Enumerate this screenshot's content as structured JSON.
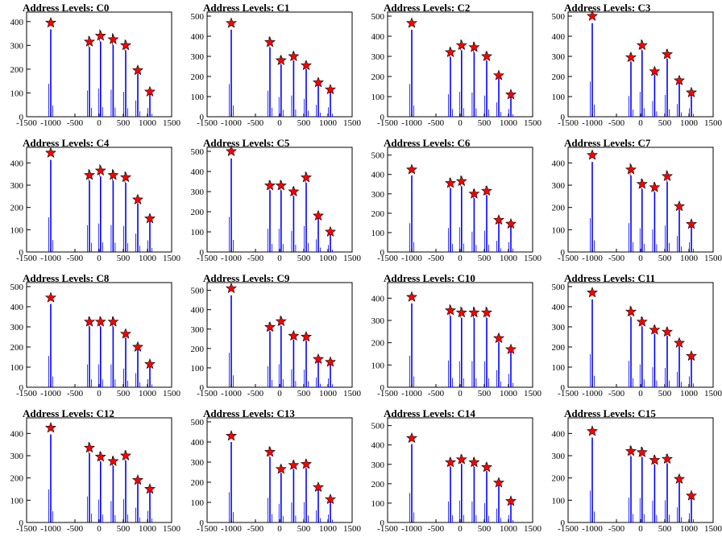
{
  "colors": {
    "histogram": "#0000ff",
    "marker": "#ff0000",
    "marker_outline": "#000000",
    "axes": "#000000"
  },
  "chart_data": [
    {
      "title": "Address Levels: C0",
      "type": "bar",
      "xlim": [
        -1500,
        1500
      ],
      "ylim": [
        0,
        440
      ],
      "xticks": [
        "-1500",
        "-1000",
        "-500",
        "0",
        "500",
        "1000",
        "1500"
      ],
      "yticks": [
        "0",
        "100",
        "200",
        "300",
        "400"
      ],
      "peaks": [
        {
          "x": -1000,
          "y": 395
        },
        {
          "x": -200,
          "y": 315
        },
        {
          "x": 30,
          "y": 340
        },
        {
          "x": 290,
          "y": 325
        },
        {
          "x": 550,
          "y": 300
        },
        {
          "x": 800,
          "y": 195
        },
        {
          "x": 1050,
          "y": 105
        }
      ]
    },
    {
      "title": "Address Levels: C1",
      "type": "bar",
      "xlim": [
        -1500,
        1500
      ],
      "ylim": [
        0,
        520
      ],
      "xticks": [
        "-1500",
        "-1000",
        "-500",
        "0",
        "500",
        "1000",
        "1500"
      ],
      "yticks": [
        "0",
        "100",
        "200",
        "300",
        "400",
        "500"
      ],
      "peaks": [
        {
          "x": -1000,
          "y": 465
        },
        {
          "x": -200,
          "y": 370
        },
        {
          "x": 30,
          "y": 280
        },
        {
          "x": 290,
          "y": 300
        },
        {
          "x": 550,
          "y": 255
        },
        {
          "x": 800,
          "y": 170
        },
        {
          "x": 1050,
          "y": 135
        }
      ]
    },
    {
      "title": "Address Levels: C2",
      "type": "bar",
      "xlim": [
        -1500,
        1500
      ],
      "ylim": [
        0,
        520
      ],
      "xticks": [
        "-1500",
        "-1000",
        "-500",
        "0",
        "500",
        "1000",
        "1500"
      ],
      "yticks": [
        "0",
        "100",
        "200",
        "300",
        "400",
        "500"
      ],
      "peaks": [
        {
          "x": -1000,
          "y": 465
        },
        {
          "x": -200,
          "y": 320
        },
        {
          "x": 30,
          "y": 355
        },
        {
          "x": 290,
          "y": 345
        },
        {
          "x": 550,
          "y": 300
        },
        {
          "x": 800,
          "y": 205
        },
        {
          "x": 1050,
          "y": 110
        }
      ]
    },
    {
      "title": "Address Levels: C3",
      "type": "bar",
      "xlim": [
        -1500,
        1500
      ],
      "ylim": [
        0,
        520
      ],
      "xticks": [
        "-1500",
        "-1000",
        "-500",
        "0",
        "500",
        "1000",
        "1500"
      ],
      "yticks": [
        "0",
        "100",
        "200",
        "300",
        "400",
        "500"
      ],
      "peaks": [
        {
          "x": -1000,
          "y": 500
        },
        {
          "x": -200,
          "y": 295
        },
        {
          "x": 30,
          "y": 355
        },
        {
          "x": 290,
          "y": 225
        },
        {
          "x": 550,
          "y": 310
        },
        {
          "x": 800,
          "y": 180
        },
        {
          "x": 1050,
          "y": 120
        }
      ]
    },
    {
      "title": "Address Levels: C4",
      "type": "bar",
      "xlim": [
        -1500,
        1500
      ],
      "ylim": [
        0,
        470
      ],
      "xticks": [
        "-1500",
        "-1000",
        "-500",
        "0",
        "500",
        "1000",
        "1500"
      ],
      "yticks": [
        "0",
        "100",
        "200",
        "300",
        "400"
      ],
      "peaks": [
        {
          "x": -1000,
          "y": 445
        },
        {
          "x": -200,
          "y": 345
        },
        {
          "x": 30,
          "y": 365
        },
        {
          "x": 290,
          "y": 345
        },
        {
          "x": 550,
          "y": 335
        },
        {
          "x": 800,
          "y": 235
        },
        {
          "x": 1050,
          "y": 150
        }
      ]
    },
    {
      "title": "Address Levels: C5",
      "type": "bar",
      "xlim": [
        -1500,
        1500
      ],
      "ylim": [
        0,
        520
      ],
      "xticks": [
        "-1500",
        "-1000",
        "-500",
        "0",
        "500",
        "1000",
        "1500"
      ],
      "yticks": [
        "0",
        "100",
        "200",
        "300",
        "400",
        "500"
      ],
      "peaks": [
        {
          "x": -1000,
          "y": 500
        },
        {
          "x": -200,
          "y": 330
        },
        {
          "x": 30,
          "y": 330
        },
        {
          "x": 290,
          "y": 300
        },
        {
          "x": 550,
          "y": 370
        },
        {
          "x": 800,
          "y": 180
        },
        {
          "x": 1050,
          "y": 100
        }
      ]
    },
    {
      "title": "Address Levels: C6",
      "type": "bar",
      "xlim": [
        -1500,
        1500
      ],
      "ylim": [
        0,
        540
      ],
      "xticks": [
        "-1500",
        "-1000",
        "-500",
        "0",
        "500",
        "1000",
        "1500"
      ],
      "yticks": [
        "0",
        "100",
        "200",
        "300",
        "400",
        "500"
      ],
      "peaks": [
        {
          "x": -1000,
          "y": 425
        },
        {
          "x": -200,
          "y": 355
        },
        {
          "x": 30,
          "y": 365
        },
        {
          "x": 290,
          "y": 300
        },
        {
          "x": 550,
          "y": 315
        },
        {
          "x": 800,
          "y": 165
        },
        {
          "x": 1050,
          "y": 145
        }
      ]
    },
    {
      "title": "Address Levels: C7",
      "type": "bar",
      "xlim": [
        -1500,
        1500
      ],
      "ylim": [
        0,
        470
      ],
      "xticks": [
        "-1500",
        "-1000",
        "-500",
        "0",
        "500",
        "1000",
        "1500"
      ],
      "yticks": [
        "0",
        "100",
        "200",
        "300",
        "400"
      ],
      "peaks": [
        {
          "x": -1000,
          "y": 435
        },
        {
          "x": -200,
          "y": 370
        },
        {
          "x": 30,
          "y": 305
        },
        {
          "x": 290,
          "y": 290
        },
        {
          "x": 550,
          "y": 340
        },
        {
          "x": 800,
          "y": 205
        },
        {
          "x": 1050,
          "y": 125
        }
      ]
    },
    {
      "title": "Address Levels: C8",
      "type": "bar",
      "xlim": [
        -1500,
        1500
      ],
      "ylim": [
        0,
        520
      ],
      "xticks": [
        "-1500",
        "-1000",
        "-500",
        "0",
        "500",
        "1000",
        "1500"
      ],
      "yticks": [
        "0",
        "100",
        "200",
        "300",
        "400",
        "500"
      ],
      "peaks": [
        {
          "x": -1000,
          "y": 445
        },
        {
          "x": -200,
          "y": 325
        },
        {
          "x": 30,
          "y": 325
        },
        {
          "x": 290,
          "y": 325
        },
        {
          "x": 550,
          "y": 265
        },
        {
          "x": 800,
          "y": 200
        },
        {
          "x": 1050,
          "y": 115
        }
      ]
    },
    {
      "title": "Address Levels: C9",
      "type": "bar",
      "xlim": [
        -1500,
        1500
      ],
      "ylim": [
        0,
        540
      ],
      "xticks": [
        "-1500",
        "-1000",
        "-500",
        "0",
        "500",
        "1000",
        "1500"
      ],
      "yticks": [
        "0",
        "100",
        "200",
        "300",
        "400",
        "500"
      ],
      "peaks": [
        {
          "x": -1000,
          "y": 510
        },
        {
          "x": -200,
          "y": 310
        },
        {
          "x": 30,
          "y": 340
        },
        {
          "x": 290,
          "y": 265
        },
        {
          "x": 550,
          "y": 260
        },
        {
          "x": 800,
          "y": 145
        },
        {
          "x": 1050,
          "y": 130
        }
      ]
    },
    {
      "title": "Address Levels: C10",
      "type": "bar",
      "xlim": [
        -1500,
        1500
      ],
      "ylim": [
        0,
        470
      ],
      "xticks": [
        "-1500",
        "-1000",
        "-500",
        "0",
        "500",
        "1000",
        "1500"
      ],
      "yticks": [
        "0",
        "100",
        "200",
        "300",
        "400"
      ],
      "peaks": [
        {
          "x": -1000,
          "y": 405
        },
        {
          "x": -200,
          "y": 345
        },
        {
          "x": 30,
          "y": 335
        },
        {
          "x": 290,
          "y": 335
        },
        {
          "x": 550,
          "y": 335
        },
        {
          "x": 800,
          "y": 220
        },
        {
          "x": 1050,
          "y": 170
        }
      ]
    },
    {
      "title": "Address Levels: C11",
      "type": "bar",
      "xlim": [
        -1500,
        1500
      ],
      "ylim": [
        0,
        520
      ],
      "xticks": [
        "-1500",
        "-1000",
        "-500",
        "0",
        "500",
        "1000",
        "1500"
      ],
      "yticks": [
        "0",
        "100",
        "200",
        "300",
        "400",
        "500"
      ],
      "peaks": [
        {
          "x": -1000,
          "y": 470
        },
        {
          "x": -200,
          "y": 375
        },
        {
          "x": 30,
          "y": 325
        },
        {
          "x": 290,
          "y": 285
        },
        {
          "x": 550,
          "y": 275
        },
        {
          "x": 800,
          "y": 220
        },
        {
          "x": 1050,
          "y": 155
        }
      ]
    },
    {
      "title": "Address Levels: C12",
      "type": "bar",
      "xlim": [
        -1500,
        1500
      ],
      "ylim": [
        0,
        470
      ],
      "xticks": [
        "-1500",
        "-1000",
        "-500",
        "0",
        "500",
        "1000",
        "1500"
      ],
      "yticks": [
        "0",
        "100",
        "200",
        "300",
        "400"
      ],
      "peaks": [
        {
          "x": -1000,
          "y": 425
        },
        {
          "x": -200,
          "y": 335
        },
        {
          "x": 30,
          "y": 295
        },
        {
          "x": 290,
          "y": 275
        },
        {
          "x": 550,
          "y": 300
        },
        {
          "x": 800,
          "y": 190
        },
        {
          "x": 1050,
          "y": 150
        }
      ]
    },
    {
      "title": "Address Levels: C13",
      "type": "bar",
      "xlim": [
        -1500,
        1500
      ],
      "ylim": [
        0,
        520
      ],
      "xticks": [
        "-1500",
        "-1000",
        "-500",
        "0",
        "500",
        "1000",
        "1500"
      ],
      "yticks": [
        "0",
        "100",
        "200",
        "300",
        "400",
        "500"
      ],
      "peaks": [
        {
          "x": -1000,
          "y": 430
        },
        {
          "x": -200,
          "y": 350
        },
        {
          "x": 30,
          "y": 265
        },
        {
          "x": 290,
          "y": 285
        },
        {
          "x": 550,
          "y": 290
        },
        {
          "x": 800,
          "y": 175
        },
        {
          "x": 1050,
          "y": 115
        }
      ]
    },
    {
      "title": "Address Levels: C14",
      "type": "bar",
      "xlim": [
        -1500,
        1500
      ],
      "ylim": [
        0,
        540
      ],
      "xticks": [
        "-1500",
        "-1000",
        "-500",
        "0",
        "500",
        "1000",
        "1500"
      ],
      "yticks": [
        "0",
        "100",
        "200",
        "300",
        "400",
        "500"
      ],
      "peaks": [
        {
          "x": -1000,
          "y": 435
        },
        {
          "x": -200,
          "y": 310
        },
        {
          "x": 30,
          "y": 325
        },
        {
          "x": 290,
          "y": 310
        },
        {
          "x": 550,
          "y": 285
        },
        {
          "x": 800,
          "y": 205
        },
        {
          "x": 1050,
          "y": 110
        }
      ]
    },
    {
      "title": "Address Levels: C15",
      "type": "bar",
      "xlim": [
        -1500,
        1500
      ],
      "ylim": [
        0,
        470
      ],
      "xticks": [
        "-1500",
        "-1000",
        "-500",
        "0",
        "500",
        "1000",
        "1500"
      ],
      "yticks": [
        "0",
        "100",
        "200",
        "300",
        "400"
      ],
      "peaks": [
        {
          "x": -1000,
          "y": 410
        },
        {
          "x": -200,
          "y": 320
        },
        {
          "x": 30,
          "y": 315
        },
        {
          "x": 290,
          "y": 280
        },
        {
          "x": 550,
          "y": 285
        },
        {
          "x": 800,
          "y": 195
        },
        {
          "x": 1050,
          "y": 120
        }
      ]
    }
  ]
}
